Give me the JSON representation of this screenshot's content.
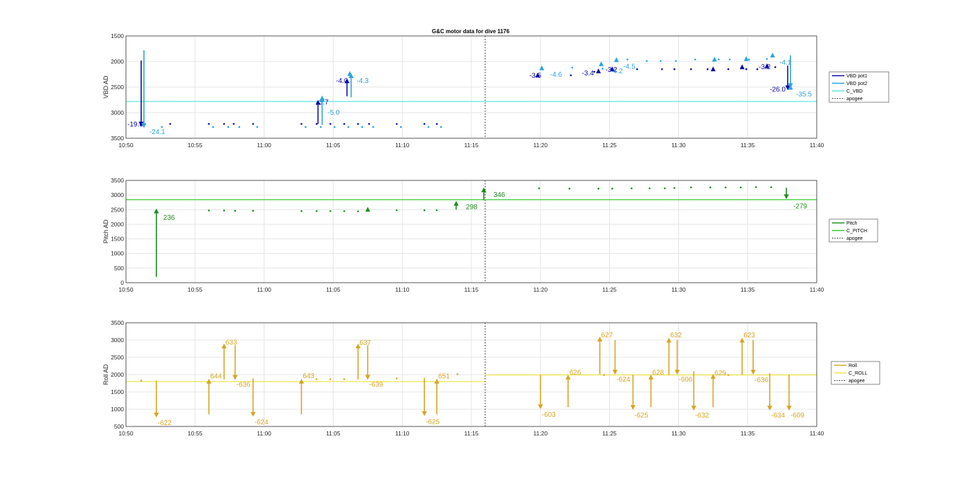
{
  "title": "G&C motor data for dive 1176",
  "x_tick_labels": [
    "10:50",
    "10:55",
    "11:00",
    "11:05",
    "11:10",
    "11:15",
    "11:20",
    "11:25",
    "11:30",
    "11:35",
    "11:40"
  ],
  "colors": {
    "vbd1": "#0a0aa8",
    "vbd2": "#2aa5e0",
    "c_vbd": "#5ee6e6",
    "pitch": "#1e8c1e",
    "c_pitch": "#2ecc2e",
    "roll": "#d8a521",
    "c_roll": "#f2e34c",
    "apogee": "#444444",
    "grid": "#e4e4e4",
    "axes": "#333333"
  },
  "chart_data": [
    {
      "type": "line",
      "name": "vbd",
      "ylabel": "VBD AD",
      "ylim": [
        1500,
        3500
      ],
      "y_reversed": true,
      "yticks": [
        1500,
        2000,
        2500,
        3000,
        3500
      ],
      "xlim_min": [
        0,
        50
      ],
      "apogee_min": 26,
      "constant": 2780,
      "legend": [
        "VBD pot1",
        "VBD pot2",
        "C_VBD",
        "apogee"
      ],
      "series": [
        {
          "key": "vbd1",
          "dots": [
            [
              3.2,
              3220
            ],
            [
              6.0,
              3220
            ],
            [
              7.1,
              3220
            ],
            [
              7.8,
              3220
            ],
            [
              9.2,
              3220
            ],
            [
              12.7,
              3220
            ],
            [
              13.8,
              3220
            ],
            [
              14.8,
              3220
            ],
            [
              15.8,
              3220
            ],
            [
              16.8,
              3220
            ],
            [
              17.6,
              3220
            ],
            [
              19.6,
              3220
            ],
            [
              21.6,
              3220
            ],
            [
              22.5,
              3220
            ],
            [
              29.8,
              2270
            ],
            [
              32.2,
              2270
            ],
            [
              33.9,
              2200
            ],
            [
              37.0,
              2150
            ],
            [
              38.8,
              2150
            ],
            [
              39.7,
              2150
            ],
            [
              40.9,
              2150
            ],
            [
              42.1,
              2150
            ],
            [
              43.6,
              2150
            ],
            [
              44.9,
              2150
            ],
            [
              45.7,
              2150
            ],
            [
              47.0,
              2110
            ]
          ],
          "triangles": [
            [
              29.8,
              2270
            ],
            [
              34.2,
              2190
            ],
            [
              35.2,
              2150
            ],
            [
              42.5,
              2150
            ],
            [
              44.6,
              2110
            ],
            [
              46.4,
              2090
            ]
          ],
          "arrows": [
            [
              1.1,
              1980,
              3270
            ],
            [
              13.9,
              3220,
              2750
            ],
            [
              16.0,
              2680,
              2330
            ],
            [
              47.9,
              2080,
              2560
            ]
          ],
          "labels": [
            [
              0.0,
              3230,
              "-19.6"
            ],
            [
              13.7,
              2800,
              "-3.7"
            ],
            [
              15.1,
              2380,
              "-4.0"
            ],
            [
              29.1,
              2280,
              "-3.5"
            ],
            [
              32.9,
              2230,
              "-3.4"
            ],
            [
              34.6,
              2160,
              "-3.2"
            ],
            [
              45.7,
              2110,
              "-3.2"
            ],
            [
              46.5,
              2550,
              "-26.0"
            ]
          ]
        },
        {
          "key": "vbd2",
          "dots": [
            [
              2.6,
              3280
            ],
            [
              6.3,
              3280
            ],
            [
              7.4,
              3280
            ],
            [
              8.2,
              3280
            ],
            [
              9.5,
              3280
            ],
            [
              13.0,
              3280
            ],
            [
              14.1,
              3280
            ],
            [
              15.1,
              3280
            ],
            [
              16.1,
              3280
            ],
            [
              17.1,
              3280
            ],
            [
              17.9,
              3280
            ],
            [
              19.9,
              3280
            ],
            [
              21.9,
              3280
            ],
            [
              22.8,
              3280
            ],
            [
              32.3,
              2120
            ],
            [
              34.5,
              2140
            ],
            [
              36.3,
              1960
            ],
            [
              37.7,
              1990
            ],
            [
              38.7,
              1990
            ],
            [
              39.8,
              1990
            ],
            [
              41.2,
              1960
            ],
            [
              42.9,
              1960
            ],
            [
              43.7,
              1960
            ],
            [
              45.1,
              1960
            ],
            [
              46.4,
              1950
            ]
          ],
          "triangles": [
            [
              14.2,
              2720
            ],
            [
              16.2,
              2240
            ],
            [
              30.1,
              2130
            ],
            [
              34.4,
              2050
            ],
            [
              35.5,
              1970
            ],
            [
              42.6,
              1960
            ],
            [
              44.9,
              1950
            ],
            [
              46.8,
              1880
            ],
            [
              48.1,
              2510
            ]
          ],
          "arrows": [
            [
              1.3,
              1780,
              3300
            ],
            [
              14.2,
              3240,
              2700
            ],
            [
              16.3,
              2700,
              2230
            ],
            [
              48.1,
              1880,
              2520
            ]
          ],
          "labels": [
            [
              1.6,
              3380,
              "-24.1"
            ],
            [
              14.5,
              3000,
              "-5.0"
            ],
            [
              16.6,
              2380,
              "-4.3"
            ],
            [
              30.6,
              2260,
              "-4.6"
            ],
            [
              35.0,
              2190,
              "-4.2"
            ],
            [
              35.9,
              2100,
              "-4.5"
            ],
            [
              47.2,
              2020,
              "-4.1"
            ],
            [
              48.4,
              2640,
              "-35.5"
            ]
          ]
        }
      ]
    },
    {
      "type": "line",
      "name": "pitch",
      "ylabel": "Pitch AD",
      "ylim": [
        0,
        3500
      ],
      "yticks": [
        0,
        500,
        1000,
        1500,
        2000,
        2500,
        3000,
        3500
      ],
      "xlim_min": [
        0,
        50
      ],
      "apogee_min": 26,
      "constant": 2840,
      "legend": [
        "Pitch",
        "C_PITCH",
        "apogee"
      ],
      "series": [
        {
          "key": "pitch",
          "dots": [
            [
              6.0,
              2470
            ],
            [
              7.1,
              2470
            ],
            [
              7.9,
              2460
            ],
            [
              9.2,
              2460
            ],
            [
              12.7,
              2450
            ],
            [
              13.8,
              2450
            ],
            [
              14.8,
              2450
            ],
            [
              15.8,
              2450
            ],
            [
              16.8,
              2440
            ],
            [
              19.6,
              2480
            ],
            [
              21.6,
              2480
            ],
            [
              22.5,
              2480
            ],
            [
              29.9,
              3230
            ],
            [
              32.1,
              3220
            ],
            [
              34.2,
              3220
            ],
            [
              35.2,
              3220
            ],
            [
              36.6,
              3230
            ],
            [
              37.9,
              3230
            ],
            [
              39.0,
              3230
            ],
            [
              39.7,
              3240
            ],
            [
              40.9,
              3260
            ],
            [
              42.3,
              3260
            ],
            [
              43.4,
              3260
            ],
            [
              44.5,
              3260
            ],
            [
              45.6,
              3270
            ],
            [
              46.7,
              3270
            ]
          ],
          "triangles": [
            [
              17.5,
              2500
            ]
          ],
          "arrows": [
            [
              2.2,
              200,
              2540
            ],
            [
              23.9,
              2500,
              2800
            ],
            [
              25.9,
              2830,
              3260
            ],
            [
              47.8,
              3250,
              2860
            ]
          ],
          "labels": [
            [
              2.6,
              2220,
              "236"
            ],
            [
              24.5,
              2590,
              "298"
            ],
            [
              26.5,
              3000,
              "346"
            ],
            [
              48.2,
              2610,
              "-279"
            ]
          ]
        }
      ]
    },
    {
      "type": "line",
      "name": "roll",
      "ylabel": "Roll AD",
      "ylim": [
        500,
        3500
      ],
      "yticks": [
        500,
        1000,
        1500,
        2000,
        2500,
        3000,
        3500
      ],
      "xlim_min": [
        0,
        50
      ],
      "apogee_min": 26,
      "constant_segments": [
        [
          0,
          26,
          1800
        ],
        [
          26,
          50,
          1990
        ]
      ],
      "legend": [
        "Roll",
        "C_ROLL",
        "apogee"
      ],
      "series": [
        {
          "key": "roll",
          "dots": [
            [
              1.1,
              1830
            ],
            [
              13.8,
              1870
            ],
            [
              14.8,
              1870
            ],
            [
              15.8,
              1870
            ],
            [
              19.6,
              1890
            ],
            [
              24.0,
              2010
            ],
            [
              34.6,
              1990
            ],
            [
              43.6,
              1990
            ]
          ],
          "triangles": [],
          "arrows": [
            [
              2.2,
              1830,
              760
            ],
            [
              6.0,
              850,
              1880
            ],
            [
              7.1,
              1860,
              2900
            ],
            [
              7.9,
              2850,
              1850
            ],
            [
              9.2,
              1890,
              780
            ],
            [
              12.7,
              850,
              1880
            ],
            [
              16.8,
              1860,
              2900
            ],
            [
              17.5,
              2850,
              1850
            ],
            [
              21.6,
              1910,
              800
            ],
            [
              22.5,
              850,
              1880
            ],
            [
              30.0,
              1990,
              1000
            ],
            [
              32.0,
              1060,
              2000
            ],
            [
              34.3,
              2010,
              3100
            ],
            [
              35.4,
              3000,
              2000
            ],
            [
              36.7,
              2000,
              980
            ],
            [
              38.0,
              1060,
              2000
            ],
            [
              39.3,
              1990,
              3070
            ],
            [
              39.9,
              3000,
              2000
            ],
            [
              41.1,
              2100,
              960
            ],
            [
              42.5,
              1060,
              2020
            ],
            [
              44.6,
              2000,
              3070
            ],
            [
              45.4,
              3000,
              2000
            ],
            [
              46.6,
              2040,
              960
            ],
            [
              48.0,
              2000,
              960
            ]
          ],
          "labels": [
            [
              2.2,
              600,
              "-622"
            ],
            [
              6.0,
              1950,
              "644"
            ],
            [
              7.1,
              2930,
              "633"
            ],
            [
              7.9,
              1710,
              "-636"
            ],
            [
              9.2,
              620,
              "-624"
            ],
            [
              12.7,
              1960,
              "643"
            ],
            [
              16.8,
              2920,
              "637"
            ],
            [
              17.5,
              1710,
              "-639"
            ],
            [
              21.6,
              630,
              "-625"
            ],
            [
              22.5,
              1950,
              "651"
            ],
            [
              30.0,
              840,
              "-603"
            ],
            [
              32.0,
              2060,
              "626"
            ],
            [
              34.3,
              3140,
              "627"
            ],
            [
              35.4,
              1860,
              "-624"
            ],
            [
              36.7,
              820,
              "-625"
            ],
            [
              38.0,
              2060,
              "628"
            ],
            [
              39.3,
              3140,
              "632"
            ],
            [
              39.9,
              1860,
              "-606"
            ],
            [
              41.1,
              820,
              "-632"
            ],
            [
              42.5,
              2040,
              "629"
            ],
            [
              44.6,
              3140,
              "623"
            ],
            [
              45.4,
              1840,
              "-636"
            ],
            [
              46.6,
              820,
              "-634"
            ],
            [
              48.0,
              820,
              "-609"
            ]
          ]
        }
      ]
    }
  ]
}
